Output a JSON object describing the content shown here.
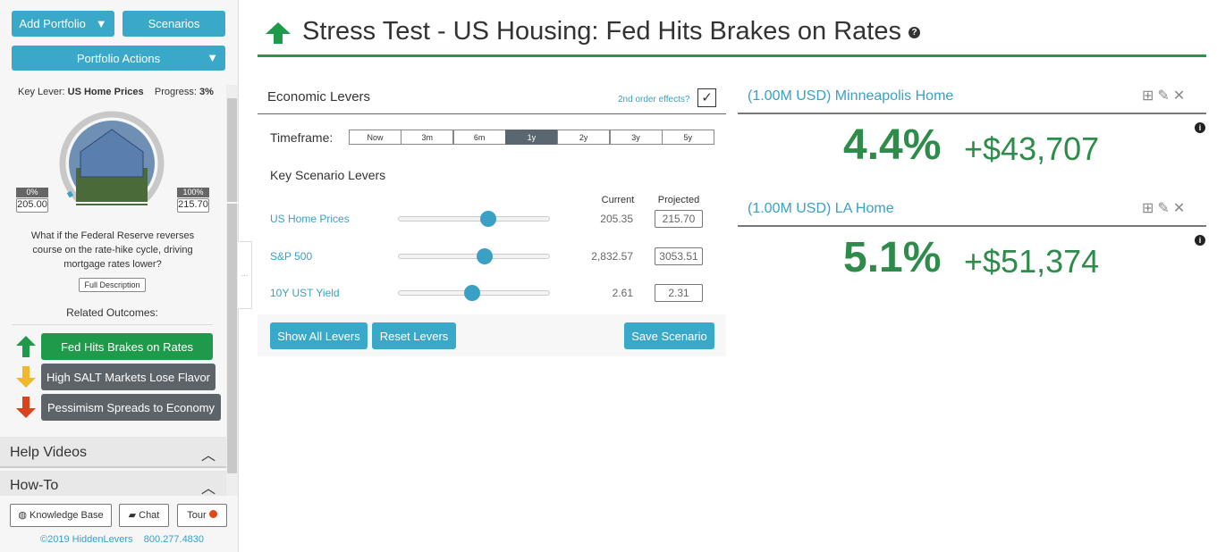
{
  "sidebar": {
    "buttons": {
      "add_portfolio": "Add Portfolio",
      "scenarios": "Scenarios",
      "portfolio_actions": "Portfolio Actions"
    },
    "key_lever_label": "Key Lever:",
    "key_lever": "US Home Prices",
    "progress_label": "Progress:",
    "progress": "3%",
    "gauge": {
      "min_label": "0%",
      "min_value": "205.00",
      "max_label": "100%",
      "max_value": "215.70"
    },
    "description": "What if the Federal Reserve reverses course on the rate-hike cycle, driving mortgage rates lower?",
    "full_description": "Full Description",
    "related_title": "Related Outcomes:",
    "related": [
      "Fed Hits Brakes on Rates",
      "High SALT Markets Lose Flavor",
      "Pessimism Spreads to Economy"
    ],
    "sections": [
      "Help Videos",
      "How-To"
    ],
    "footer_buttons": [
      "Knowledge Base",
      "Chat",
      "Tour"
    ],
    "copyright": "©2019 HiddenLevers",
    "phone": "800.277.4830"
  },
  "header": {
    "title": "Stress Test - US Housing: Fed Hits Brakes on Rates"
  },
  "levers": {
    "title": "Economic Levers",
    "second_order": "2nd order effects?",
    "timeframe_label": "Timeframe:",
    "timeframes": [
      "Now",
      "3m",
      "6m",
      "1y",
      "2y",
      "3y",
      "5y"
    ],
    "key_title": "Key Scenario Levers",
    "columns": [
      "Current",
      "Projected"
    ],
    "rows": [
      {
        "name": "US Home Prices",
        "current": "205.35",
        "projected": "215.70"
      },
      {
        "name": "S&P 500",
        "current": "2,832.57",
        "projected": "3053.51"
      },
      {
        "name": "10Y UST Yield",
        "current": "2.61",
        "projected": "2.31"
      }
    ],
    "buttons": [
      "Show All Levers",
      "Reset Levers",
      "Save Scenario"
    ]
  },
  "portfolios": [
    {
      "name": "(1.00M USD) Minneapolis Home",
      "percent": "4.4%",
      "gain": "+$43,707"
    },
    {
      "name": "(1.00M USD) LA Home",
      "percent": "5.1%",
      "gain": "+$51,374"
    }
  ]
}
